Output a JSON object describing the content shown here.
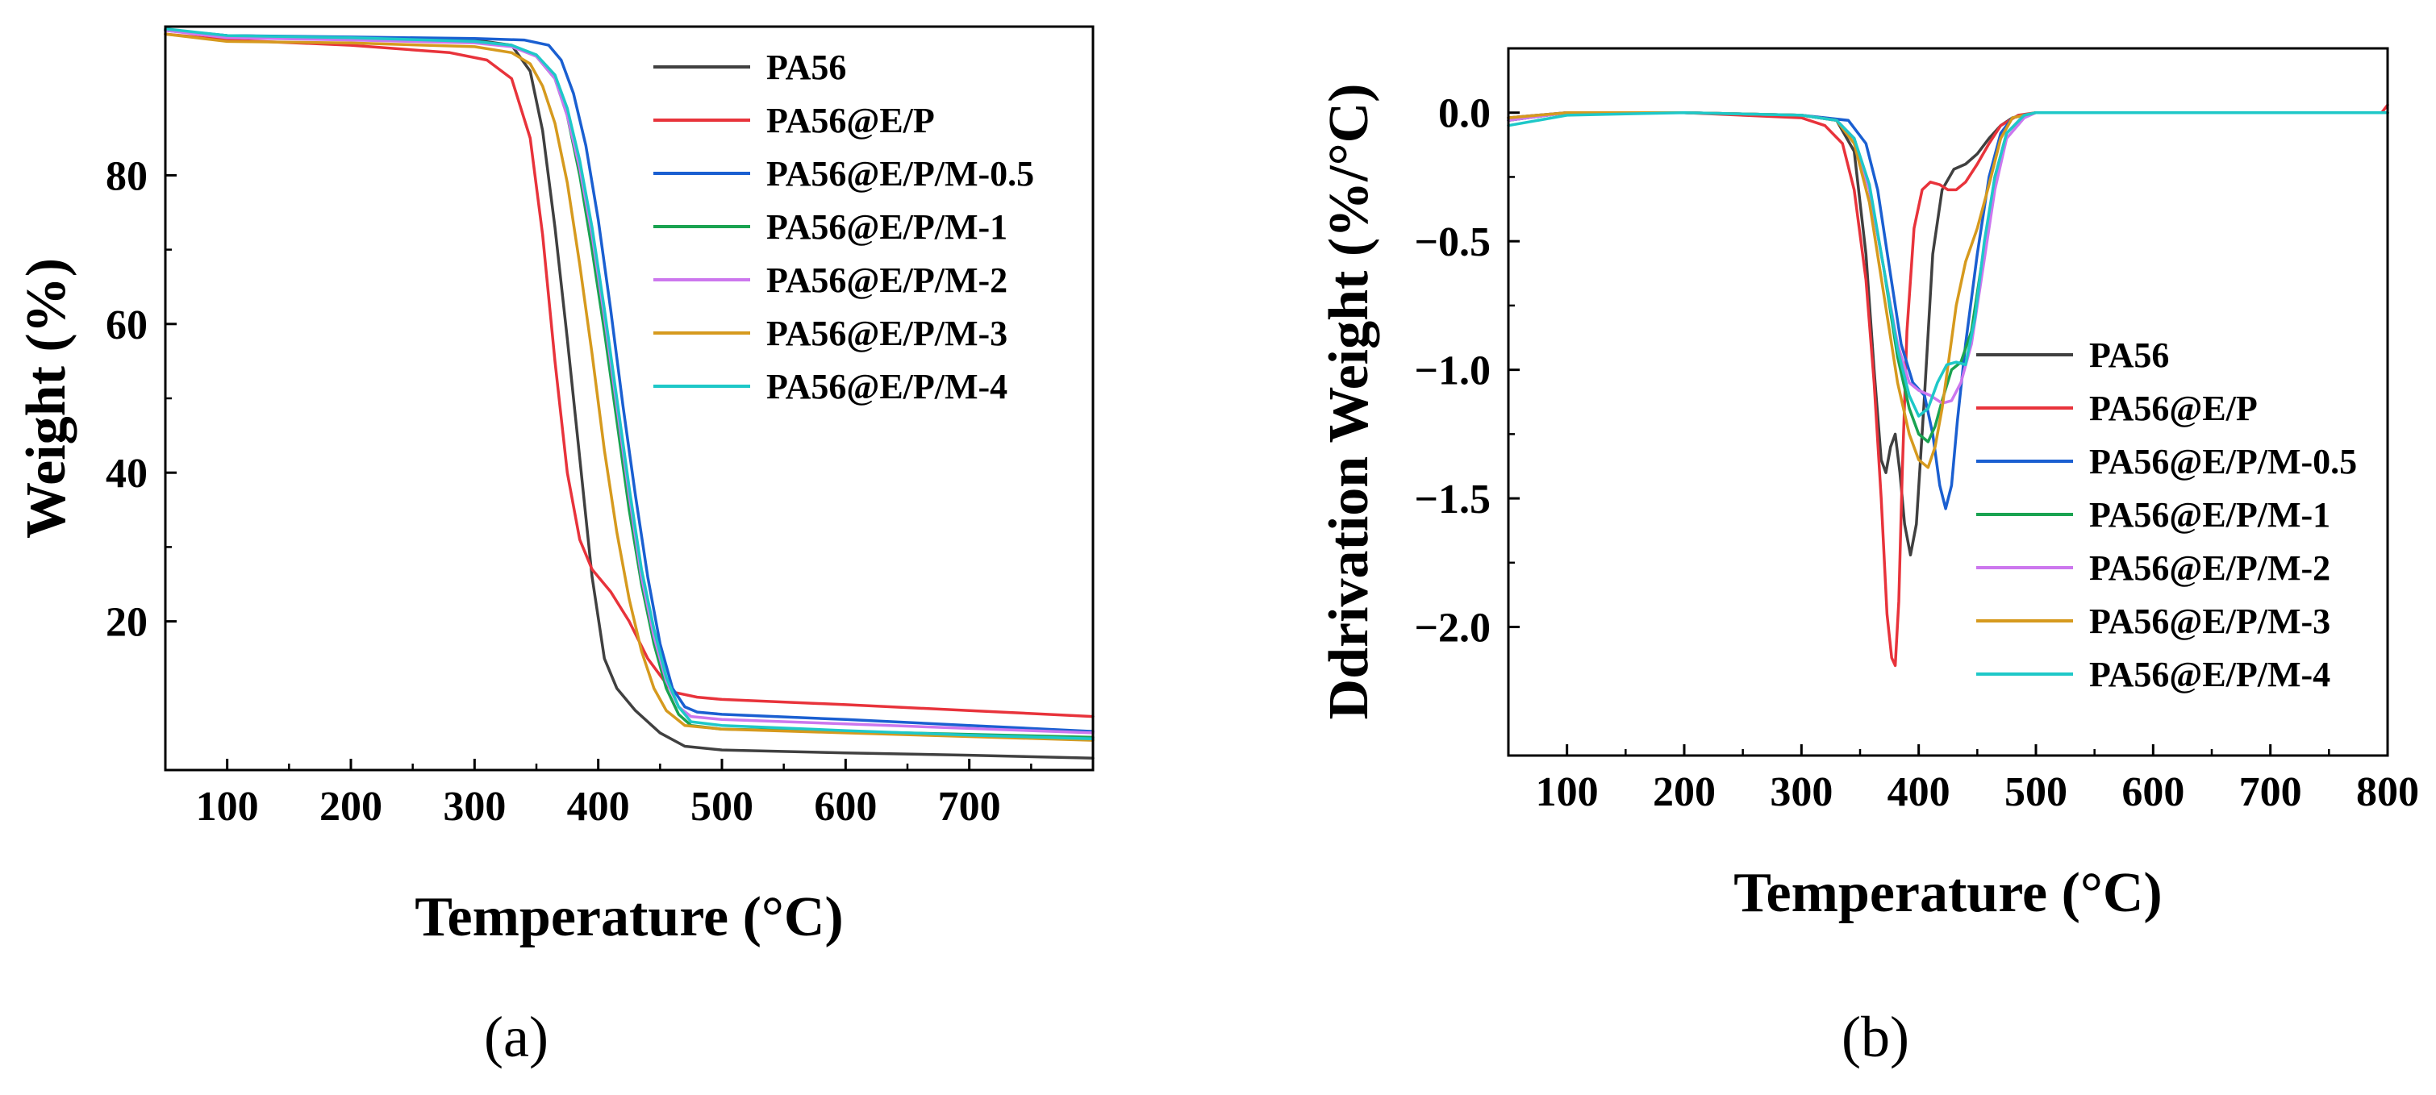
{
  "chart_data": [
    {
      "type": "line",
      "panel_label": "(a)",
      "xlabel": "Temperature (°C)",
      "ylabel": "Weight (%)",
      "xlim": [
        50,
        800
      ],
      "ylim": [
        0,
        100
      ],
      "xticks": [
        100,
        200,
        300,
        400,
        500,
        600,
        700
      ],
      "yticks": [
        20,
        40,
        60,
        80
      ],
      "grid": false,
      "legend_position": "top-right",
      "series": [
        {
          "name": "PA56",
          "color": "#404040",
          "x": [
            50,
            100,
            200,
            300,
            330,
            345,
            355,
            365,
            375,
            385,
            395,
            405,
            415,
            430,
            450,
            470,
            500,
            600,
            700,
            800
          ],
          "y": [
            99.5,
            98.8,
            98.5,
            98.2,
            97.5,
            94,
            86,
            73,
            58,
            42,
            26,
            15,
            11,
            8,
            5,
            3.2,
            2.7,
            2.3,
            2.0,
            1.6
          ]
        },
        {
          "name": "PA56@E/P",
          "color": "#e8333b",
          "x": [
            50,
            100,
            200,
            280,
            310,
            330,
            345,
            355,
            365,
            375,
            385,
            395,
            410,
            425,
            440,
            460,
            480,
            500,
            600,
            700,
            800
          ],
          "y": [
            99.0,
            98.2,
            97.5,
            96.5,
            95.5,
            93,
            85,
            72,
            55,
            40,
            31,
            27,
            24,
            20,
            15,
            10.5,
            9.8,
            9.5,
            8.8,
            8.0,
            7.2
          ]
        },
        {
          "name": "PA56@E/P/M-0.5",
          "color": "#1a5fd1",
          "x": [
            50,
            100,
            200,
            300,
            340,
            360,
            370,
            380,
            390,
            400,
            410,
            420,
            430,
            440,
            450,
            460,
            470,
            480,
            500,
            600,
            700,
            800
          ],
          "y": [
            99.6,
            98.8,
            98.6,
            98.4,
            98.2,
            97.5,
            95.5,
            91,
            84,
            74,
            62,
            49,
            37,
            26,
            17,
            11,
            8.5,
            7.8,
            7.5,
            6.8,
            6.0,
            5.2
          ]
        },
        {
          "name": "PA56@E/P/M-1",
          "color": "#1aa351",
          "x": [
            50,
            100,
            200,
            300,
            330,
            350,
            365,
            375,
            385,
            395,
            405,
            415,
            425,
            435,
            445,
            455,
            465,
            475,
            500,
            600,
            700,
            800
          ],
          "y": [
            99.5,
            98.6,
            98.4,
            98.0,
            97.5,
            96,
            93,
            88,
            80,
            70,
            59,
            47,
            35,
            25,
            17,
            11,
            7.5,
            6,
            5.5,
            5.2,
            4.8,
            4.4
          ]
        },
        {
          "name": "PA56@E/P/M-2",
          "color": "#cc77ee",
          "x": [
            50,
            100,
            200,
            300,
            330,
            350,
            365,
            375,
            385,
            395,
            405,
            415,
            425,
            435,
            445,
            455,
            465,
            475,
            500,
            600,
            700,
            800
          ],
          "y": [
            99.5,
            98.5,
            98.2,
            97.8,
            97.3,
            96,
            93,
            88,
            81,
            72,
            61,
            49,
            37,
            26,
            18,
            12,
            8.5,
            7.2,
            6.8,
            6.2,
            5.6,
            5.0
          ]
        },
        {
          "name": "PA56@E/P/M-3",
          "color": "#d69a1e",
          "x": [
            50,
            100,
            200,
            300,
            330,
            345,
            355,
            365,
            375,
            385,
            395,
            405,
            415,
            425,
            435,
            445,
            455,
            470,
            500,
            600,
            700,
            800
          ],
          "y": [
            99.0,
            98.0,
            97.8,
            97.3,
            96.5,
            95,
            92,
            87,
            79,
            68,
            56,
            43,
            32,
            23,
            16,
            11,
            8,
            6,
            5.5,
            5.0,
            4.5,
            4.0
          ]
        },
        {
          "name": "PA56@E/P/M-4",
          "color": "#1ec8c8",
          "x": [
            50,
            100,
            200,
            300,
            330,
            350,
            365,
            375,
            385,
            395,
            405,
            415,
            425,
            435,
            445,
            455,
            465,
            475,
            500,
            600,
            700,
            800
          ],
          "y": [
            99.7,
            98.8,
            98.5,
            98.0,
            97.5,
            96.2,
            93.5,
            89,
            82,
            73,
            62,
            50,
            38,
            27,
            19,
            12.5,
            8.5,
            6.5,
            6.0,
            5.3,
            4.7,
            4.2
          ]
        }
      ]
    },
    {
      "type": "line",
      "panel_label": "(b)",
      "xlabel": "Temperature (°C)",
      "ylabel": "Ddrivation Weight (%/°C)",
      "xlim": [
        50,
        800
      ],
      "ylim": [
        -2.5,
        0.25
      ],
      "xticks": [
        100,
        200,
        300,
        400,
        500,
        600,
        700,
        800
      ],
      "yticks": [
        "0.0",
        "−0.5",
        "−1.0",
        "−1.5",
        "−2.0"
      ],
      "ytick_values": [
        0,
        -0.5,
        -1.0,
        -1.5,
        -2.0
      ],
      "grid": false,
      "legend_position": "center-right",
      "series": [
        {
          "name": "PA56",
          "color": "#404040",
          "x": [
            50,
            100,
            200,
            300,
            330,
            345,
            355,
            362,
            368,
            372,
            376,
            380,
            384,
            388,
            393,
            398,
            405,
            412,
            420,
            430,
            440,
            450,
            460,
            470,
            480,
            500,
            600,
            700,
            800
          ],
          "y": [
            -0.03,
            0,
            0,
            -0.01,
            -0.03,
            -0.15,
            -0.55,
            -1.0,
            -1.35,
            -1.4,
            -1.3,
            -1.25,
            -1.4,
            -1.6,
            -1.72,
            -1.6,
            -1.1,
            -0.55,
            -0.3,
            -0.22,
            -0.2,
            -0.16,
            -0.1,
            -0.05,
            -0.02,
            0,
            0,
            0,
            0
          ]
        },
        {
          "name": "PA56@E/P",
          "color": "#e8333b",
          "x": [
            50,
            100,
            200,
            300,
            320,
            335,
            345,
            355,
            362,
            368,
            373,
            377,
            380,
            383,
            386,
            390,
            396,
            403,
            410,
            418,
            425,
            432,
            440,
            450,
            460,
            470,
            485,
            500,
            600,
            700,
            795,
            800
          ],
          "y": [
            -0.02,
            0,
            0,
            -0.02,
            -0.05,
            -0.12,
            -0.3,
            -0.65,
            -1.05,
            -1.5,
            -1.95,
            -2.12,
            -2.15,
            -1.9,
            -1.4,
            -0.85,
            -0.45,
            -0.3,
            -0.27,
            -0.28,
            -0.3,
            -0.3,
            -0.27,
            -0.2,
            -0.12,
            -0.05,
            -0.01,
            0,
            0,
            0,
            0,
            0.03
          ]
        },
        {
          "name": "PA56@E/P/M-0.5",
          "color": "#1a5fd1",
          "x": [
            50,
            100,
            200,
            300,
            340,
            355,
            365,
            375,
            385,
            395,
            405,
            412,
            418,
            423,
            428,
            433,
            440,
            450,
            460,
            470,
            480,
            500,
            600,
            700,
            800
          ],
          "y": [
            -0.02,
            0,
            0,
            -0.01,
            -0.03,
            -0.12,
            -0.3,
            -0.6,
            -0.9,
            -1.05,
            -1.1,
            -1.25,
            -1.45,
            -1.54,
            -1.45,
            -1.2,
            -0.9,
            -0.55,
            -0.25,
            -0.08,
            -0.02,
            0,
            0,
            0,
            0
          ]
        },
        {
          "name": "PA56@E/P/M-1",
          "color": "#1aa351",
          "x": [
            50,
            100,
            200,
            300,
            330,
            345,
            358,
            370,
            382,
            392,
            400,
            408,
            414,
            420,
            428,
            436,
            445,
            455,
            465,
            475,
            490,
            500,
            600,
            700,
            800
          ],
          "y": [
            -0.03,
            0,
            0,
            -0.01,
            -0.03,
            -0.1,
            -0.3,
            -0.6,
            -0.95,
            -1.15,
            -1.25,
            -1.28,
            -1.22,
            -1.12,
            -1.0,
            -0.97,
            -0.85,
            -0.55,
            -0.25,
            -0.08,
            -0.01,
            0,
            0,
            0,
            0
          ]
        },
        {
          "name": "PA56@E/P/M-2",
          "color": "#cc77ee",
          "x": [
            50,
            100,
            200,
            300,
            330,
            345,
            358,
            370,
            382,
            392,
            400,
            410,
            420,
            428,
            436,
            445,
            455,
            465,
            475,
            490,
            500,
            600,
            700,
            800
          ],
          "y": [
            -0.03,
            0,
            0,
            -0.01,
            -0.03,
            -0.1,
            -0.3,
            -0.6,
            -0.9,
            -1.05,
            -1.08,
            -1.1,
            -1.13,
            -1.12,
            -1.05,
            -0.9,
            -0.6,
            -0.3,
            -0.1,
            -0.02,
            0,
            0,
            0,
            0
          ]
        },
        {
          "name": "PA56@E/P/M-3",
          "color": "#d69a1e",
          "x": [
            50,
            100,
            200,
            300,
            330,
            345,
            358,
            370,
            382,
            392,
            400,
            408,
            414,
            420,
            426,
            432,
            440,
            450,
            460,
            470,
            480,
            500,
            600,
            700,
            800
          ],
          "y": [
            -0.02,
            0,
            0,
            -0.01,
            -0.03,
            -0.12,
            -0.35,
            -0.7,
            -1.05,
            -1.25,
            -1.35,
            -1.38,
            -1.3,
            -1.15,
            -0.95,
            -0.75,
            -0.58,
            -0.45,
            -0.28,
            -0.1,
            -0.02,
            0,
            0,
            0,
            0
          ]
        },
        {
          "name": "PA56@E/P/M-4",
          "color": "#1ec8c8",
          "x": [
            50,
            100,
            200,
            300,
            330,
            345,
            358,
            370,
            382,
            392,
            400,
            408,
            416,
            424,
            432,
            440,
            448,
            456,
            465,
            475,
            490,
            500,
            600,
            700,
            800
          ],
          "y": [
            -0.05,
            -0.01,
            0,
            -0.01,
            -0.03,
            -0.1,
            -0.28,
            -0.6,
            -0.92,
            -1.1,
            -1.18,
            -1.15,
            -1.05,
            -0.98,
            -0.97,
            -0.98,
            -0.8,
            -0.5,
            -0.25,
            -0.08,
            -0.01,
            0,
            0,
            0,
            0
          ]
        }
      ]
    }
  ]
}
